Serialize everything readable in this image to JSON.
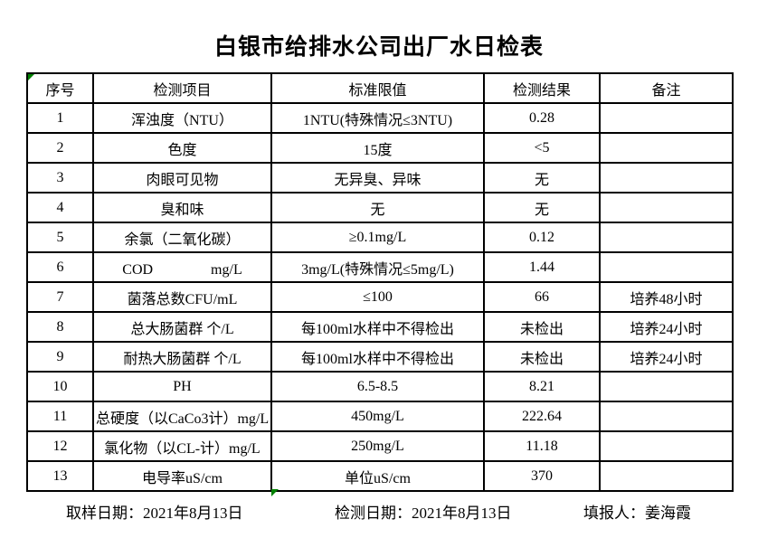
{
  "page": {
    "title": "白银市给排水公司出厂水日检表"
  },
  "table": {
    "headers": {
      "no": "序号",
      "item": "检测项目",
      "limit": "标准限值",
      "result": "检测结果",
      "note": "备注"
    },
    "rows": [
      {
        "no": "1",
        "item": "浑浊度（NTU）",
        "limit": "1NTU(特殊情况≤3NTU)",
        "result": "0.28",
        "note": ""
      },
      {
        "no": "2",
        "item": "色度",
        "limit": "15度",
        "result": "<5",
        "note": ""
      },
      {
        "no": "3",
        "item": "肉眼可见物",
        "limit": "无异臭、异味",
        "result": "无",
        "note": ""
      },
      {
        "no": "4",
        "item": "臭和味",
        "limit": "无",
        "result": "无",
        "note": ""
      },
      {
        "no": "5",
        "item": "余氯（二氧化碳）",
        "limit": "≥0.1mg/L",
        "result": "0.12",
        "note": ""
      },
      {
        "no": "6",
        "item": "COD　　　　mg/L",
        "limit": "3mg/L(特殊情况≤5mg/L)",
        "result": "1.44",
        "note": ""
      },
      {
        "no": "7",
        "item": "菌落总数CFU/mL",
        "limit": "≤100",
        "result": "66",
        "note": "培养48小时"
      },
      {
        "no": "8",
        "item": "总大肠菌群 个/L",
        "limit": "每100ml水样中不得检出",
        "result": "未检出",
        "note": "培养24小时"
      },
      {
        "no": "9",
        "item": "耐热大肠菌群 个/L",
        "limit": "每100ml水样中不得检出",
        "result": "未检出",
        "note": "培养24小时"
      },
      {
        "no": "10",
        "item": "PH",
        "limit": "6.5-8.5",
        "result": "8.21",
        "note": ""
      },
      {
        "no": "11",
        "item": "总硬度（以CaCo3计）mg/L",
        "limit": "450mg/L",
        "result": "222.64",
        "note": ""
      },
      {
        "no": "12",
        "item": "氯化物（以CL-计）mg/L",
        "limit": "250mg/L",
        "result": "11.18",
        "note": ""
      },
      {
        "no": "13",
        "item": "电导率uS/cm",
        "limit": "单位uS/cm",
        "result": "370",
        "note": ""
      }
    ]
  },
  "footer": {
    "sampling_date": "取样日期：2021年8月13日",
    "test_date": "检测日期：2021年8月13日",
    "reporter": "填报人：姜海霞"
  },
  "colors": {
    "marker_green": "#008000",
    "border": "#000000",
    "background": "#ffffff",
    "text": "#000000"
  }
}
